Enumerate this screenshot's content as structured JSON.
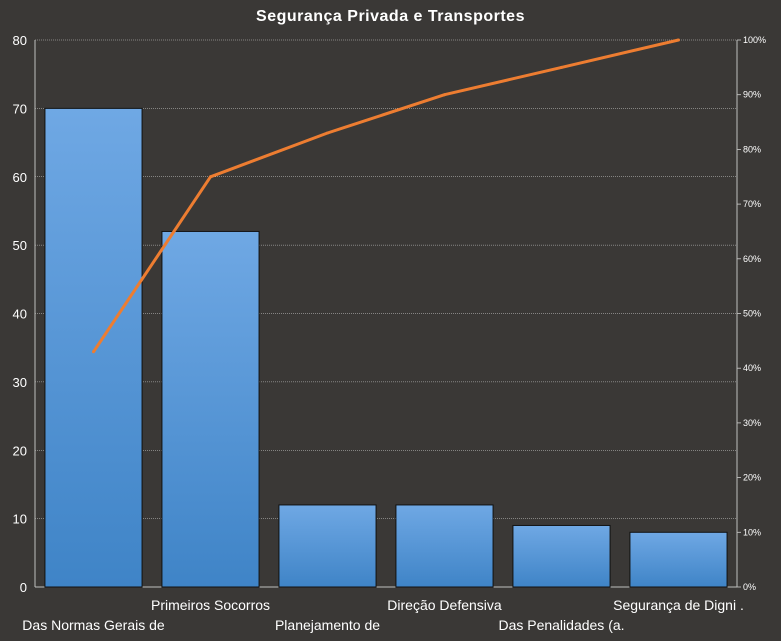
{
  "chart_data": {
    "type": "bar",
    "title": "Segurança Privada e Transportes",
    "categories": [
      "Das Normas Gerais de",
      "Primeiros Socorros",
      "Planejamento de",
      "Direção Defensiva",
      "Das Penalidades (a.",
      "Segurança de Digni ."
    ],
    "series": [
      {
        "type": "bar",
        "values": [
          70,
          52,
          12,
          12,
          9,
          8
        ]
      },
      {
        "type": "line",
        "axis": "secondary",
        "values": [
          0.43,
          0.75,
          0.83,
          0.9,
          0.95,
          1.0
        ]
      }
    ],
    "ylim": [
      0,
      80
    ],
    "yticks": [
      0,
      10,
      20,
      30,
      40,
      50,
      60,
      70,
      80
    ],
    "y2lim": [
      0,
      1
    ],
    "y2ticks": [
      "0%",
      "10%",
      "20%",
      "30%",
      "40%",
      "50%",
      "60%",
      "70%",
      "80%",
      "90%",
      "100%"
    ],
    "grid": true,
    "legend": "none"
  },
  "colors": {
    "background": "#3a3836",
    "bar_top": "#6fa8e4",
    "bar_bottom": "#3f84c7",
    "line": "#ed7d31",
    "grid": "#cfcfcf"
  }
}
